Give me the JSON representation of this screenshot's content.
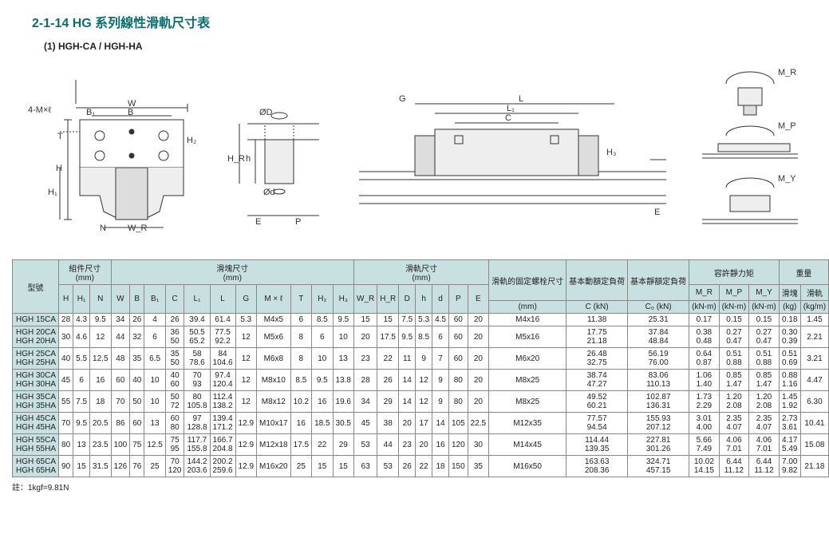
{
  "title": "2-1-14  HG 系列線性滑軌尺寸表",
  "subtitle": "(1) HGH-CA / HGH-HA",
  "diag": {
    "W": "W",
    "B1": "B₁",
    "B": "B",
    "H2": "H₂",
    "T": "T",
    "H": "H",
    "H1": "H₁",
    "N": "N",
    "WR": "W_R",
    "Mxl": "4-M×ℓ",
    "G": "G",
    "L": "L",
    "L1": "L₁",
    "C": "C",
    "H3": "H₃",
    "E": "E",
    "P": "P",
    "oD": "ØD",
    "od": "Ød",
    "h": "h",
    "HR": "H_R",
    "MR": "M_R",
    "MP": "M_P",
    "MY": "M_Y"
  },
  "hdr": {
    "model": "型號",
    "assy": "組件尺寸",
    "assyu": "(mm)",
    "blk": "滑塊尺寸",
    "blku": "(mm)",
    "rail": "滑軌尺寸",
    "railu": "(mm)",
    "bolt": "滑軌的固定螺栓尺寸",
    "boltu": "(mm)",
    "dyn": "基本動額定負荷",
    "cdyn": "C (kN)",
    "sta": "基本靜額定負荷",
    "csta": "C₀ (kN)",
    "moment": "容許靜力矩",
    "weight": "重量",
    "H": "H",
    "H1": "H₁",
    "N": "N",
    "W": "W",
    "B": "B",
    "B1": "B₁",
    "C": "C",
    "L1": "L₁",
    "L": "L",
    "G": "G",
    "Mxl": "M × ℓ",
    "T": "T",
    "H2": "H₂",
    "H3": "H₃",
    "WR": "W_R",
    "HR": "H_R",
    "D": "D",
    "hh": "h",
    "d": "d",
    "P": "P",
    "E": "E",
    "MR": "M_R",
    "MRu": "(kN-m)",
    "MP": "M_P",
    "MPu": "(kN-m)",
    "MY": "M_Y",
    "MYu": "(kN-m)",
    "wblk": "滑塊",
    "wblku": "(kg)",
    "wrail": "滑軌",
    "wrailu": "(kg/m)"
  },
  "rows": [
    {
      "m": [
        "HGH 15CA"
      ],
      "H": "28",
      "H1": "4.3",
      "N": "9.5",
      "W": "34",
      "B": "26",
      "B1": "4",
      "C": [
        "26"
      ],
      "L1": [
        "39.4"
      ],
      "L": [
        "61.4"
      ],
      "G": "5.3",
      "Mxl": "M4x5",
      "T": "6",
      "H2": "8.5",
      "H3": "9.5",
      "WR": "15",
      "HR": "15",
      "D": "7.5",
      "h": "5.3",
      "d": "4.5",
      "P": "60",
      "E": "20",
      "bolt": "M4x16",
      "dyn": [
        "11.38"
      ],
      "sta": [
        "25.31"
      ],
      "MR": [
        "0.17"
      ],
      "MP": [
        "0.15"
      ],
      "MY": [
        "0.15"
      ],
      "wb": [
        "0.18"
      ],
      "wr": "1.45"
    },
    {
      "m": [
        "HGH 20CA",
        "HGH 20HA"
      ],
      "H": "30",
      "H1": "4.6",
      "N": "12",
      "W": "44",
      "B": "32",
      "B1": "6",
      "C": [
        "36",
        "50"
      ],
      "L1": [
        "50.5",
        "65.2"
      ],
      "L": [
        "77.5",
        "92.2"
      ],
      "G": "12",
      "Mxl": "M5x6",
      "T": "8",
      "H2": "6",
      "H3": "10",
      "WR": "20",
      "HR": "17.5",
      "D": "9.5",
      "h": "8.5",
      "d": "6",
      "P": "60",
      "E": "20",
      "bolt": "M5x16",
      "dyn": [
        "17.75",
        "21.18"
      ],
      "sta": [
        "37.84",
        "48.84"
      ],
      "MR": [
        "0.38",
        "0.48"
      ],
      "MP": [
        "0.27",
        "0.47"
      ],
      "MY": [
        "0.27",
        "0.47"
      ],
      "wb": [
        "0.30",
        "0.39"
      ],
      "wr": "2.21"
    },
    {
      "m": [
        "HGH 25CA",
        "HGH 25HA"
      ],
      "H": "40",
      "H1": "5.5",
      "N": "12.5",
      "W": "48",
      "B": "35",
      "B1": "6.5",
      "C": [
        "35",
        "50"
      ],
      "L1": [
        "58",
        "78.6"
      ],
      "L": [
        "84",
        "104.6"
      ],
      "G": "12",
      "Mxl": "M6x8",
      "T": "8",
      "H2": "10",
      "H3": "13",
      "WR": "23",
      "HR": "22",
      "D": "11",
      "h": "9",
      "d": "7",
      "P": "60",
      "E": "20",
      "bolt": "M6x20",
      "dyn": [
        "26.48",
        "32.75"
      ],
      "sta": [
        "56.19",
        "76.00"
      ],
      "MR": [
        "0.64",
        "0.87"
      ],
      "MP": [
        "0.51",
        "0.88"
      ],
      "MY": [
        "0.51",
        "0.88"
      ],
      "wb": [
        "0.51",
        "0.69"
      ],
      "wr": "3.21"
    },
    {
      "m": [
        "HGH 30CA",
        "HGH 30HA"
      ],
      "H": "45",
      "H1": "6",
      "N": "16",
      "W": "60",
      "B": "40",
      "B1": "10",
      "C": [
        "40",
        "60"
      ],
      "L1": [
        "70",
        "93"
      ],
      "L": [
        "97.4",
        "120.4"
      ],
      "G": "12",
      "Mxl": "M8x10",
      "T": "8.5",
      "H2": "9.5",
      "H3": "13.8",
      "WR": "28",
      "HR": "26",
      "D": "14",
      "h": "12",
      "d": "9",
      "P": "80",
      "E": "20",
      "bolt": "M8x25",
      "dyn": [
        "38.74",
        "47.27"
      ],
      "sta": [
        "83.06",
        "110.13"
      ],
      "MR": [
        "1.06",
        "1.40"
      ],
      "MP": [
        "0.85",
        "1.47"
      ],
      "MY": [
        "0.85",
        "1.47"
      ],
      "wb": [
        "0.88",
        "1.16"
      ],
      "wr": "4.47"
    },
    {
      "m": [
        "HGH 35CA",
        "HGH 35HA"
      ],
      "H": "55",
      "H1": "7.5",
      "N": "18",
      "W": "70",
      "B": "50",
      "B1": "10",
      "C": [
        "50",
        "72"
      ],
      "L1": [
        "80",
        "105.8"
      ],
      "L": [
        "112.4",
        "138.2"
      ],
      "G": "12",
      "Mxl": "M8x12",
      "T": "10.2",
      "H2": "16",
      "H3": "19.6",
      "WR": "34",
      "HR": "29",
      "D": "14",
      "h": "12",
      "d": "9",
      "P": "80",
      "E": "20",
      "bolt": "M8x25",
      "dyn": [
        "49.52",
        "60.21"
      ],
      "sta": [
        "102.87",
        "136.31"
      ],
      "MR": [
        "1.73",
        "2.29"
      ],
      "MP": [
        "1.20",
        "2.08"
      ],
      "MY": [
        "1.20",
        "2.08"
      ],
      "wb": [
        "1.45",
        "1.92"
      ],
      "wr": "6.30"
    },
    {
      "m": [
        "HGH 45CA",
        "HGH 45HA"
      ],
      "H": "70",
      "H1": "9.5",
      "N": "20.5",
      "W": "86",
      "B": "60",
      "B1": "13",
      "C": [
        "60",
        "80"
      ],
      "L1": [
        "97",
        "128.8"
      ],
      "L": [
        "139.4",
        "171.2"
      ],
      "G": "12.9",
      "Mxl": "M10x17",
      "T": "16",
      "H2": "18.5",
      "H3": "30.5",
      "WR": "45",
      "HR": "38",
      "D": "20",
      "h": "17",
      "d": "14",
      "P": "105",
      "E": "22.5",
      "bolt": "M12x35",
      "dyn": [
        "77.57",
        "94.54"
      ],
      "sta": [
        "155.93",
        "207.12"
      ],
      "MR": [
        "3.01",
        "4.00"
      ],
      "MP": [
        "2.35",
        "4.07"
      ],
      "MY": [
        "2.35",
        "4.07"
      ],
      "wb": [
        "2.73",
        "3.61"
      ],
      "wr": "10.41"
    },
    {
      "m": [
        "HGH 55CA",
        "HGH 55HA"
      ],
      "H": "80",
      "H1": "13",
      "N": "23.5",
      "W": "100",
      "B": "75",
      "B1": "12.5",
      "C": [
        "75",
        "95"
      ],
      "L1": [
        "117.7",
        "155.8"
      ],
      "L": [
        "166.7",
        "204.8"
      ],
      "G": "12.9",
      "Mxl": "M12x18",
      "T": "17.5",
      "H2": "22",
      "H3": "29",
      "WR": "53",
      "HR": "44",
      "D": "23",
      "h": "20",
      "d": "16",
      "P": "120",
      "E": "30",
      "bolt": "M14x45",
      "dyn": [
        "114.44",
        "139.35"
      ],
      "sta": [
        "227.81",
        "301.26"
      ],
      "MR": [
        "5.66",
        "7.49"
      ],
      "MP": [
        "4.06",
        "7.01"
      ],
      "MY": [
        "4.06",
        "7.01"
      ],
      "wb": [
        "4.17",
        "5.49"
      ],
      "wr": "15.08"
    },
    {
      "m": [
        "HGH 65CA",
        "HGH 65HA"
      ],
      "H": "90",
      "H1": "15",
      "N": "31.5",
      "W": "126",
      "B": "76",
      "B1": "25",
      "C": [
        "70",
        "120"
      ],
      "L1": [
        "144.2",
        "203.6"
      ],
      "L": [
        "200.2",
        "259.6"
      ],
      "G": "12.9",
      "Mxl": "M16x20",
      "T": "25",
      "H2": "15",
      "H3": "15",
      "WR": "63",
      "HR": "53",
      "D": "26",
      "h": "22",
      "d": "18",
      "P": "150",
      "E": "35",
      "bolt": "M16x50",
      "dyn": [
        "163.63",
        "208.36"
      ],
      "sta": [
        "324.71",
        "457.15"
      ],
      "MR": [
        "10.02",
        "14.15"
      ],
      "MP": [
        "6.44",
        "11.12"
      ],
      "MY": [
        "6.44",
        "11.12"
      ],
      "wb": [
        "7.00",
        "9.82"
      ],
      "wr": "21.18"
    }
  ],
  "foot": "註：1kgf=9.81N"
}
